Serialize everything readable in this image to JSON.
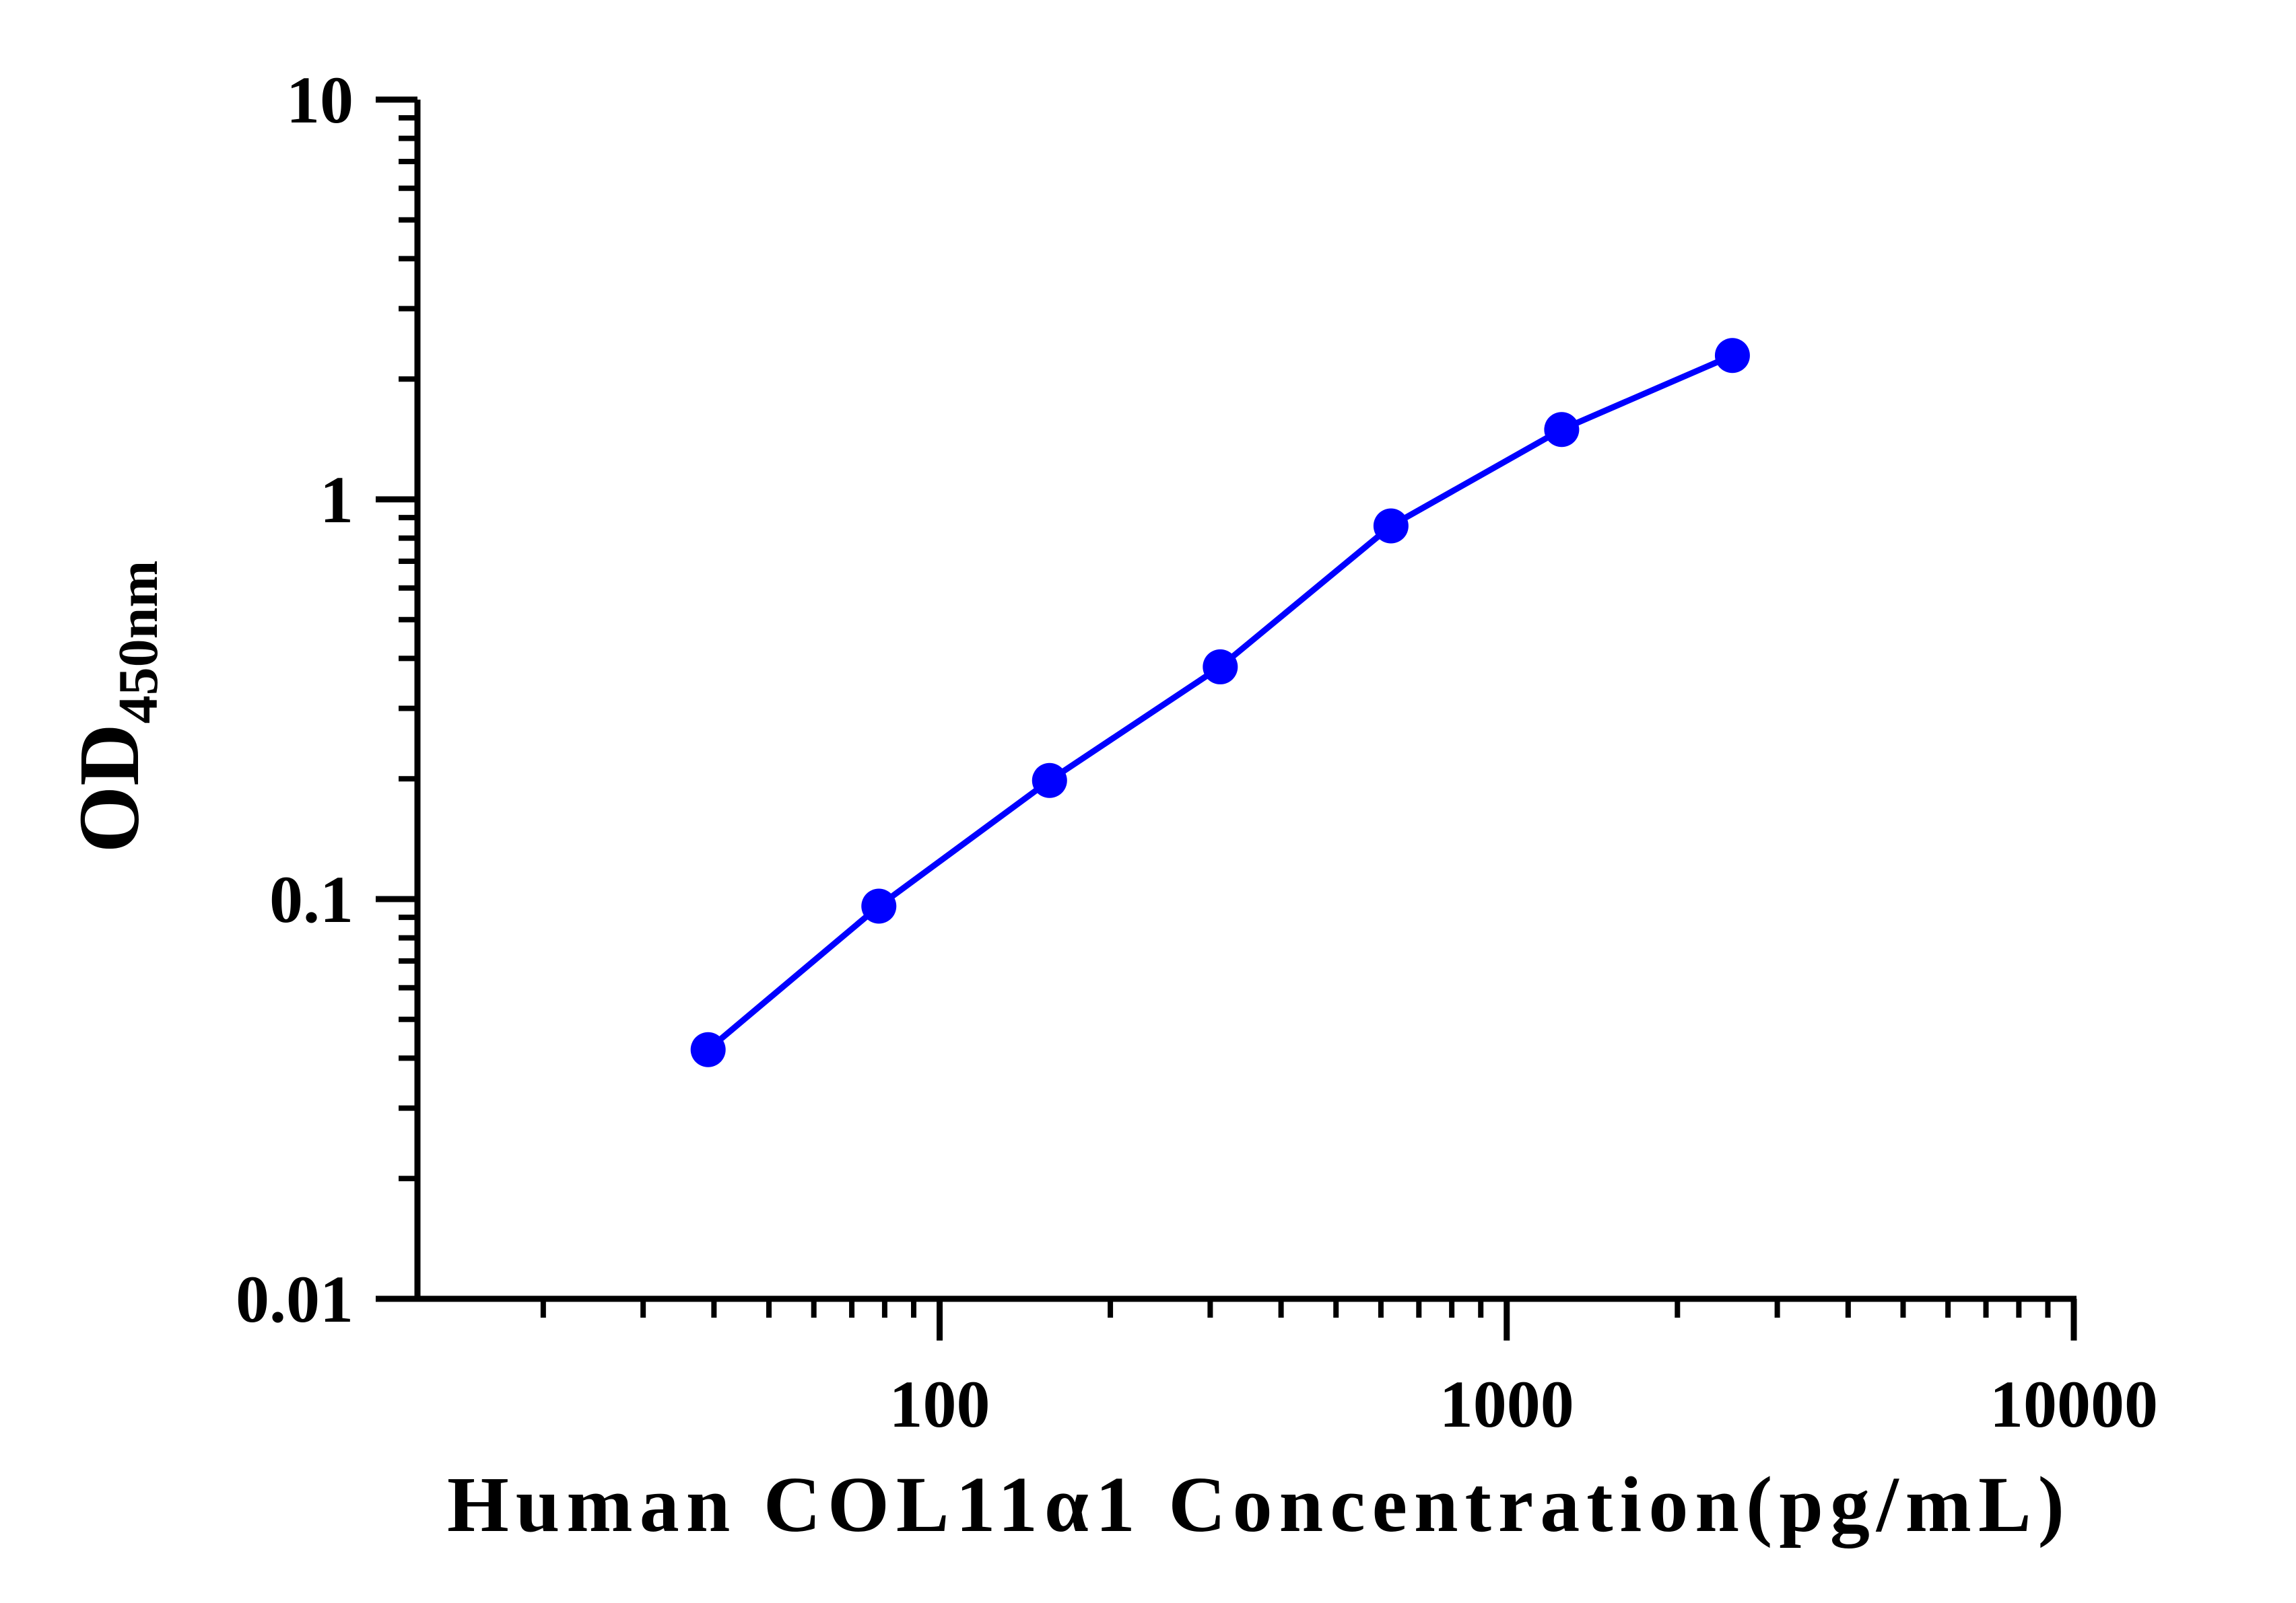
{
  "chart_data": {
    "type": "line",
    "title": "",
    "xlabel": "Human COL11α1 Concentration(pg/mL)",
    "ylabel": {
      "main": "OD",
      "subscript": "450nm"
    },
    "x_scale": "log",
    "y_scale": "log",
    "xlim": [
      12,
      10000
    ],
    "ylim": [
      0.01,
      10
    ],
    "x_ticks": [
      {
        "value": 100,
        "label": "100"
      },
      {
        "value": 1000,
        "label": "1000"
      },
      {
        "value": 10000,
        "label": "10000"
      }
    ],
    "y_ticks": [
      {
        "value": 0.01,
        "label": "0.01"
      },
      {
        "value": 0.1,
        "label": "0.1"
      },
      {
        "value": 1,
        "label": "1"
      },
      {
        "value": 10,
        "label": "10"
      }
    ],
    "grid": false,
    "legend": "none",
    "series": [
      {
        "color": "#0000ff",
        "x": [
          39.06,
          78.13,
          156.25,
          312.5,
          625,
          1250,
          2500
        ],
        "y": [
          0.042,
          0.096,
          0.198,
          0.381,
          0.858,
          1.495,
          2.29
        ]
      }
    ]
  }
}
